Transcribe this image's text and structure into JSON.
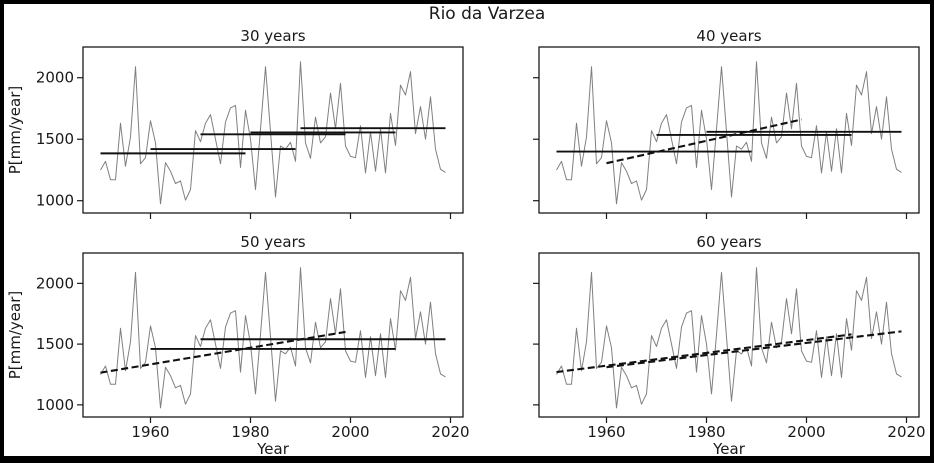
{
  "figure": {
    "background": "#ffffff",
    "border_color": "#000000"
  },
  "chart_data": {
    "type": "line",
    "suptitle": "Rio da Varzea",
    "xlabel": "Year",
    "ylabel": "P[mm/year]",
    "xlim": [
      1946.5,
      2022.5
    ],
    "ylim": [
      900,
      2250
    ],
    "xticks": [
      1960,
      1980,
      2000,
      2020
    ],
    "yticks": [
      1000,
      1500,
      2000
    ],
    "grid": false,
    "legend": "none",
    "series_name": "annual-precipitation",
    "colors": {
      "series": "#808080",
      "stat_lines": "#111111",
      "text": "#1a1a1a",
      "frame": "#1a1a1a"
    },
    "x": [
      1950,
      1951,
      1952,
      1953,
      1954,
      1955,
      1956,
      1957,
      1958,
      1959,
      1960,
      1961,
      1962,
      1963,
      1964,
      1965,
      1966,
      1967,
      1968,
      1969,
      1970,
      1971,
      1972,
      1973,
      1974,
      1975,
      1976,
      1977,
      1978,
      1979,
      1980,
      1981,
      1982,
      1983,
      1984,
      1985,
      1986,
      1987,
      1988,
      1989,
      1990,
      1991,
      1992,
      1993,
      1994,
      1995,
      1996,
      1997,
      1998,
      1999,
      2000,
      2001,
      2002,
      2003,
      2004,
      2005,
      2006,
      2007,
      2008,
      2009,
      2010,
      2011,
      2012,
      2013,
      2014,
      2015,
      2016,
      2017,
      2018,
      2019
    ],
    "y": [
      1250,
      1320,
      1170,
      1170,
      1630,
      1280,
      1520,
      2090,
      1300,
      1350,
      1650,
      1470,
      975,
      1310,
      1240,
      1140,
      1160,
      1005,
      1090,
      1570,
      1480,
      1630,
      1700,
      1500,
      1300,
      1640,
      1755,
      1775,
      1270,
      1735,
      1500,
      1090,
      1580,
      2090,
      1560,
      1030,
      1445,
      1420,
      1475,
      1320,
      2130,
      1470,
      1345,
      1680,
      1470,
      1520,
      1875,
      1585,
      1955,
      1445,
      1360,
      1350,
      1610,
      1225,
      1560,
      1240,
      1585,
      1225,
      1710,
      1450,
      1940,
      1860,
      2050,
      1545,
      1765,
      1500,
      1845,
      1420,
      1255,
      1230
    ],
    "subplots": [
      {
        "title": "30 years",
        "means": [
          [
            1950,
            1979,
            1385
          ],
          [
            1960,
            1989,
            1420
          ],
          [
            1970,
            1999,
            1540
          ],
          [
            1980,
            2009,
            1555
          ],
          [
            1990,
            2019,
            1590
          ]
        ],
        "trends": []
      },
      {
        "title": "40 years",
        "means": [
          [
            1950,
            1989,
            1400
          ],
          [
            1970,
            2009,
            1535
          ],
          [
            1980,
            2019,
            1560
          ]
        ],
        "trends": [
          [
            1960,
            1999,
            1305,
            1660
          ]
        ]
      },
      {
        "title": "50 years",
        "means": [
          [
            1960,
            2009,
            1460
          ],
          [
            1970,
            2019,
            1540
          ]
        ],
        "trends": [
          [
            1950,
            1999,
            1265,
            1600
          ]
        ]
      },
      {
        "title": "60 years",
        "means": [],
        "trends": [
          [
            1950,
            2009,
            1270,
            1580
          ],
          [
            1960,
            2019,
            1310,
            1605
          ]
        ]
      }
    ]
  }
}
